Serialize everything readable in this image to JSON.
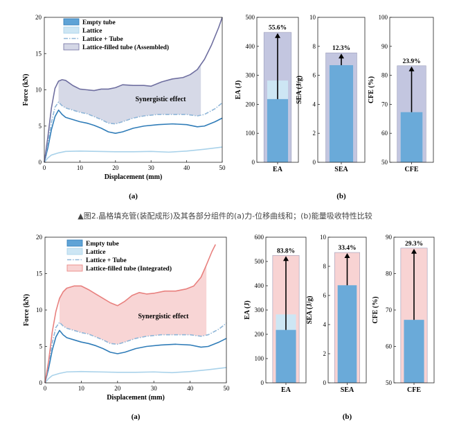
{
  "caption": "▲图2.晶格填充管(装配成形)及其各部分组件的(a)力-位移曲线和；(b)能量吸收特性比较",
  "chart_data": [
    {
      "id": "top_a",
      "type": "line",
      "panel_label": "(a)",
      "xlabel": "Displacement (mm)",
      "ylabel": "Force (kN)",
      "xlim": [
        0,
        50
      ],
      "ylim": [
        0,
        20
      ],
      "xticks": [
        "0",
        "10",
        "20",
        "30",
        "40",
        "50"
      ],
      "yticks": [
        "0",
        "5",
        "10",
        "15",
        "20"
      ],
      "annotation": "Synergistic effect",
      "fill_between": {
        "from": "Lattice + Tube",
        "to": "Lattice-filled tube (Assembled)",
        "x_range": [
          4,
          44
        ],
        "color": "#d4d7e6"
      },
      "legend_placement": "top-left",
      "series": [
        {
          "name": "Empty tube",
          "color": "#2f7cb8",
          "dash": "solid",
          "points": [
            [
              0,
              0
            ],
            [
              1,
              2
            ],
            [
              2,
              4.5
            ],
            [
              3,
              6.3
            ],
            [
              4,
              7.2
            ],
            [
              5,
              6.6
            ],
            [
              6,
              6.2
            ],
            [
              8,
              5.9
            ],
            [
              10,
              5.6
            ],
            [
              12,
              5.4
            ],
            [
              14,
              5.1
            ],
            [
              16,
              4.7
            ],
            [
              18,
              4.2
            ],
            [
              20,
              4.0
            ],
            [
              22,
              4.2
            ],
            [
              25,
              4.7
            ],
            [
              28,
              5.0
            ],
            [
              32,
              5.2
            ],
            [
              36,
              5.3
            ],
            [
              40,
              5.2
            ],
            [
              43,
              4.9
            ],
            [
              45,
              5.0
            ],
            [
              48,
              5.6
            ],
            [
              50,
              6.1
            ]
          ]
        },
        {
          "name": "Lattice",
          "color": "#a9d2ea",
          "dash": "solid",
          "points": [
            [
              0,
              0
            ],
            [
              1,
              0.6
            ],
            [
              2,
              1.0
            ],
            [
              4,
              1.3
            ],
            [
              6,
              1.5
            ],
            [
              10,
              1.55
            ],
            [
              15,
              1.5
            ],
            [
              20,
              1.45
            ],
            [
              25,
              1.45
            ],
            [
              30,
              1.5
            ],
            [
              35,
              1.4
            ],
            [
              40,
              1.55
            ],
            [
              45,
              1.8
            ],
            [
              50,
              2.1
            ]
          ]
        },
        {
          "name": "Lattice + Tube",
          "color": "#8fb6d8",
          "dash": "dashdot",
          "points": [
            [
              0,
              0
            ],
            [
              1,
              2.6
            ],
            [
              2,
              5.5
            ],
            [
              3,
              7.6
            ],
            [
              4,
              8.3
            ],
            [
              5,
              7.8
            ],
            [
              6,
              7.5
            ],
            [
              8,
              7.2
            ],
            [
              10,
              6.9
            ],
            [
              12,
              6.7
            ],
            [
              14,
              6.3
            ],
            [
              16,
              5.9
            ],
            [
              18,
              5.4
            ],
            [
              20,
              5.3
            ],
            [
              22,
              5.6
            ],
            [
              25,
              6.1
            ],
            [
              28,
              6.4
            ],
            [
              32,
              6.6
            ],
            [
              36,
              6.6
            ],
            [
              40,
              6.6
            ],
            [
              43,
              6.4
            ],
            [
              45,
              6.6
            ],
            [
              48,
              7.4
            ],
            [
              50,
              8.2
            ]
          ]
        },
        {
          "name": "Lattice-filled tube (Assembled)",
          "color": "#6f6fa0",
          "dash": "solid",
          "points": [
            [
              0,
              0
            ],
            [
              1,
              3.5
            ],
            [
              2,
              7.5
            ],
            [
              3,
              10.2
            ],
            [
              4,
              11.2
            ],
            [
              5,
              11.4
            ],
            [
              6,
              11.3
            ],
            [
              8,
              10.6
            ],
            [
              10,
              10.1
            ],
            [
              12,
              10.0
            ],
            [
              14,
              9.9
            ],
            [
              16,
              10.1
            ],
            [
              18,
              10.1
            ],
            [
              20,
              10.3
            ],
            [
              22,
              10.7
            ],
            [
              25,
              10.6
            ],
            [
              28,
              10.6
            ],
            [
              30,
              10.5
            ],
            [
              33,
              11.1
            ],
            [
              36,
              11.5
            ],
            [
              39,
              11.7
            ],
            [
              41,
              12.1
            ],
            [
              43,
              12.8
            ],
            [
              45,
              14.2
            ],
            [
              47,
              16.2
            ],
            [
              49,
              18.6
            ],
            [
              50,
              20
            ]
          ]
        }
      ],
      "legend": [
        {
          "label": "Empty tube",
          "type": "patch",
          "fill": "#5fa3d6",
          "edge": "#2f7cb8"
        },
        {
          "label": "Lattice",
          "type": "patch",
          "fill": "#cde6f4",
          "edge": "#a9d2ea"
        },
        {
          "label": "Lattice + Tube",
          "type": "line",
          "color": "#8fb6d8",
          "dash": "dashdot"
        },
        {
          "label": "Lattice-filled tube (Assembled)",
          "type": "patch",
          "fill": "#d4d7e6",
          "edge": "#6f6fa0"
        }
      ]
    },
    {
      "id": "top_b_ea",
      "type": "bar",
      "panel_label": "",
      "xlabel": "EA",
      "ylabel": "EA (J)",
      "ylim": [
        0,
        500
      ],
      "yticks": [
        "0",
        "100",
        "200",
        "300",
        "400",
        "500"
      ],
      "values": {
        "empty_tube": 218,
        "lattice_plus_tube": 282,
        "combined": 448
      },
      "improvement_label": "55.6%",
      "colors": {
        "empty_tube": "#5fa3d6",
        "lattice": "#cde6f4",
        "combined": "#c3c6e0"
      }
    },
    {
      "id": "top_b_sea",
      "type": "bar",
      "panel_label": "(b)",
      "xlabel": "SEA",
      "ylabel": "SEA (J/g)",
      "ylim": [
        0,
        10
      ],
      "yticks": [
        "0",
        "2",
        "4",
        "6",
        "8",
        "10"
      ],
      "values": {
        "empty_tube": 6.7,
        "combined": 7.55
      },
      "improvement_label": "12.3%",
      "colors": {
        "empty_tube": "#5fa3d6",
        "lattice": "#cde6f4",
        "combined": "#c3c6e0"
      }
    },
    {
      "id": "top_b_cfe",
      "type": "bar",
      "panel_label": "",
      "xlabel": "CFE",
      "ylabel": "CFE (%)",
      "ylim": [
        50,
        100
      ],
      "yticks": [
        "50",
        "60",
        "70",
        "80",
        "90",
        "100"
      ],
      "values": {
        "empty_tube": 67.3,
        "combined": 83.3
      },
      "improvement_label": "23.9%",
      "colors": {
        "empty_tube": "#5fa3d6",
        "lattice": "#cde6f4",
        "combined": "#c3c6e0"
      }
    },
    {
      "id": "bot_a",
      "type": "line",
      "panel_label": "(a)",
      "xlabel": "Displacement (mm)",
      "ylabel": "Force (kN)",
      "xlim": [
        0,
        50
      ],
      "ylim": [
        0,
        20
      ],
      "xticks": [
        "0",
        "10",
        "20",
        "30",
        "40",
        "50"
      ],
      "yticks": [
        "0",
        "5",
        "10",
        "15",
        "20"
      ],
      "annotation": "Synergistic effect",
      "fill_between": {
        "from": "Lattice + Tube",
        "to": "Lattice-filled tube (Integrated)",
        "x_range": [
          4,
          44.5
        ],
        "color": "#f8d3d3"
      },
      "legend_placement": "top-left",
      "series": [
        {
          "name": "Empty tube",
          "color": "#2f7cb8",
          "dash": "solid",
          "points": [
            [
              0,
              0
            ],
            [
              1,
              2
            ],
            [
              2,
              4.5
            ],
            [
              3,
              6.3
            ],
            [
              4,
              7.2
            ],
            [
              5,
              6.6
            ],
            [
              6,
              6.2
            ],
            [
              8,
              5.9
            ],
            [
              10,
              5.6
            ],
            [
              12,
              5.4
            ],
            [
              14,
              5.1
            ],
            [
              16,
              4.7
            ],
            [
              18,
              4.2
            ],
            [
              20,
              4.0
            ],
            [
              22,
              4.2
            ],
            [
              25,
              4.7
            ],
            [
              28,
              5.0
            ],
            [
              32,
              5.2
            ],
            [
              36,
              5.3
            ],
            [
              40,
              5.2
            ],
            [
              43,
              4.9
            ],
            [
              45,
              5.0
            ],
            [
              48,
              5.6
            ],
            [
              50,
              6.1
            ]
          ]
        },
        {
          "name": "Lattice",
          "color": "#a9d2ea",
          "dash": "solid",
          "points": [
            [
              0,
              0
            ],
            [
              1,
              0.6
            ],
            [
              2,
              1.0
            ],
            [
              4,
              1.3
            ],
            [
              6,
              1.5
            ],
            [
              10,
              1.55
            ],
            [
              15,
              1.5
            ],
            [
              20,
              1.45
            ],
            [
              25,
              1.45
            ],
            [
              30,
              1.5
            ],
            [
              35,
              1.4
            ],
            [
              40,
              1.55
            ],
            [
              45,
              1.8
            ],
            [
              50,
              2.1
            ]
          ]
        },
        {
          "name": "Lattice + Tube",
          "color": "#8fb6d8",
          "dash": "dashdot",
          "points": [
            [
              0,
              0
            ],
            [
              1,
              2.6
            ],
            [
              2,
              5.5
            ],
            [
              3,
              7.6
            ],
            [
              4,
              8.3
            ],
            [
              5,
              7.8
            ],
            [
              6,
              7.5
            ],
            [
              8,
              7.2
            ],
            [
              10,
              6.9
            ],
            [
              12,
              6.7
            ],
            [
              14,
              6.3
            ],
            [
              16,
              5.9
            ],
            [
              18,
              5.4
            ],
            [
              20,
              5.3
            ],
            [
              22,
              5.6
            ],
            [
              25,
              6.1
            ],
            [
              28,
              6.4
            ],
            [
              32,
              6.6
            ],
            [
              36,
              6.6
            ],
            [
              40,
              6.6
            ],
            [
              43,
              6.4
            ],
            [
              45,
              6.6
            ],
            [
              48,
              7.4
            ],
            [
              50,
              8.2
            ]
          ]
        },
        {
          "name": "Lattice-filled tube (Integrated)",
          "color": "#e8807e",
          "dash": "solid",
          "points": [
            [
              0,
              0
            ],
            [
              1,
              3.0
            ],
            [
              2,
              7.0
            ],
            [
              3,
              9.8
            ],
            [
              4,
              11.6
            ],
            [
              5,
              12.5
            ],
            [
              6,
              13.0
            ],
            [
              8,
              13.3
            ],
            [
              10,
              13.3
            ],
            [
              12,
              12.8
            ],
            [
              14,
              12.2
            ],
            [
              16,
              11.6
            ],
            [
              18,
              11.0
            ],
            [
              20,
              10.6
            ],
            [
              22,
              11.2
            ],
            [
              24,
              12.0
            ],
            [
              26,
              12.4
            ],
            [
              28,
              12.2
            ],
            [
              30,
              12.3
            ],
            [
              33,
              12.6
            ],
            [
              36,
              12.6
            ],
            [
              39,
              12.9
            ],
            [
              41,
              13.3
            ],
            [
              43,
              14.5
            ],
            [
              44.5,
              16.2
            ],
            [
              46,
              18.0
            ],
            [
              47,
              19.0
            ]
          ]
        }
      ],
      "legend": [
        {
          "label": "Empty tube",
          "type": "patch",
          "fill": "#5fa3d6",
          "edge": "#2f7cb8"
        },
        {
          "label": "Lattice",
          "type": "patch",
          "fill": "#cde6f4",
          "edge": "#a9d2ea"
        },
        {
          "label": "Lattice + Tube",
          "type": "line",
          "color": "#8fb6d8",
          "dash": "dashdot"
        },
        {
          "label": "Lattice-filled tube (Integrated)",
          "type": "patch",
          "fill": "#f8d3d3",
          "edge": "#e8807e"
        }
      ]
    },
    {
      "id": "bot_b_ea",
      "type": "bar",
      "panel_label": "",
      "xlabel": "EA",
      "ylabel": "EA (J)",
      "ylim": [
        0,
        600
      ],
      "yticks": [
        "0",
        "100",
        "200",
        "300",
        "400",
        "500",
        "600"
      ],
      "values": {
        "empty_tube": 218,
        "lattice_plus_tube": 282,
        "combined": 525
      },
      "improvement_label": "83.8%",
      "colors": {
        "empty_tube": "#5fa3d6",
        "lattice": "#cde6f4",
        "combined": "#f8d3d3"
      }
    },
    {
      "id": "bot_b_sea",
      "type": "bar",
      "panel_label": "(b)",
      "xlabel": "SEA",
      "ylabel": "SEA (J/g)",
      "ylim": [
        0,
        10
      ],
      "yticks": [
        "0",
        "2",
        "4",
        "6",
        "8",
        "10"
      ],
      "values": {
        "empty_tube": 6.7,
        "combined": 8.95
      },
      "improvement_label": "33.4%",
      "colors": {
        "empty_tube": "#5fa3d6",
        "lattice": "#cde6f4",
        "combined": "#f8d3d3"
      }
    },
    {
      "id": "bot_b_cfe",
      "type": "bar",
      "panel_label": "",
      "xlabel": "CFE",
      "ylabel": "CFE (%)",
      "ylim": [
        50,
        90
      ],
      "yticks": [
        "50",
        "60",
        "70",
        "80",
        "90"
      ],
      "values": {
        "empty_tube": 67.3,
        "combined": 87.0
      },
      "improvement_label": "29.3%",
      "colors": {
        "empty_tube": "#5fa3d6",
        "lattice": "#cde6f4",
        "combined": "#f8d3d3"
      }
    }
  ]
}
